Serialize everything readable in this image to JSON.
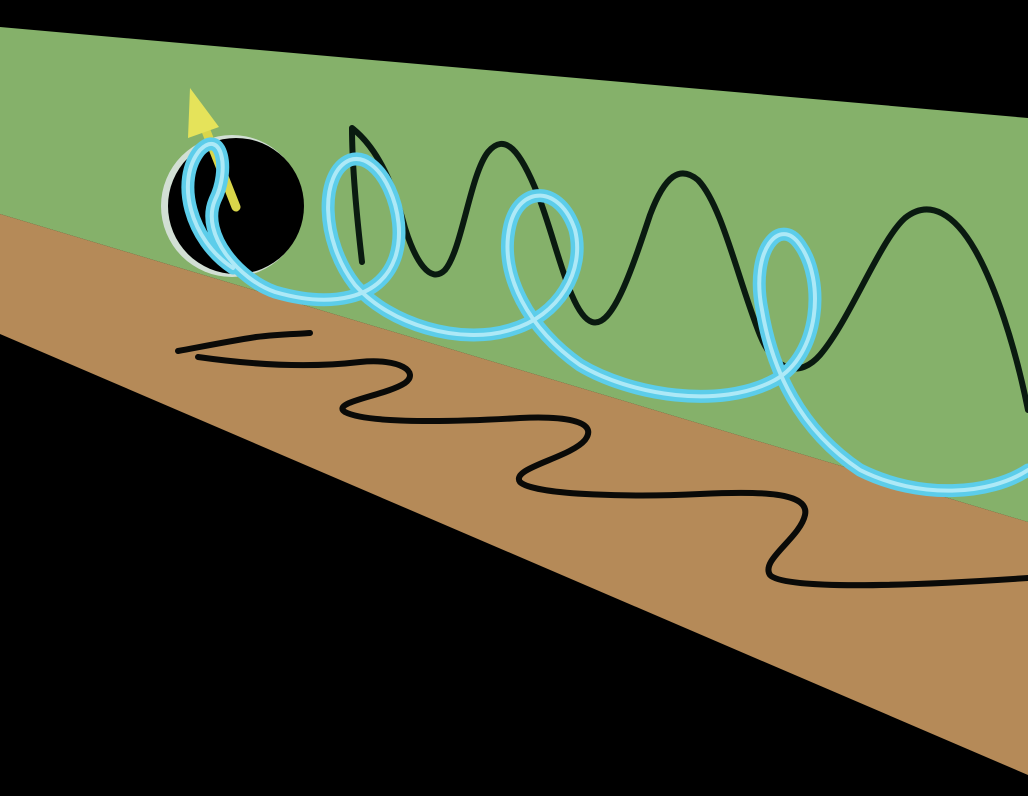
{
  "scene": {
    "background_color": "#000000",
    "vertical_plane_color": "#85b16a",
    "horizontal_plane_color": "#b58a58",
    "vertical_trace_color": "#0a1a10",
    "horizontal_trace_color": "#0a0a08",
    "helix_color": "#5ccdea",
    "helix_highlight_color": "#c8f2fb",
    "source_color": "#000000",
    "arrow_color": "#d9d64a",
    "icons": {
      "source": "circle-icon",
      "vector": "arrow-up-icon"
    }
  }
}
